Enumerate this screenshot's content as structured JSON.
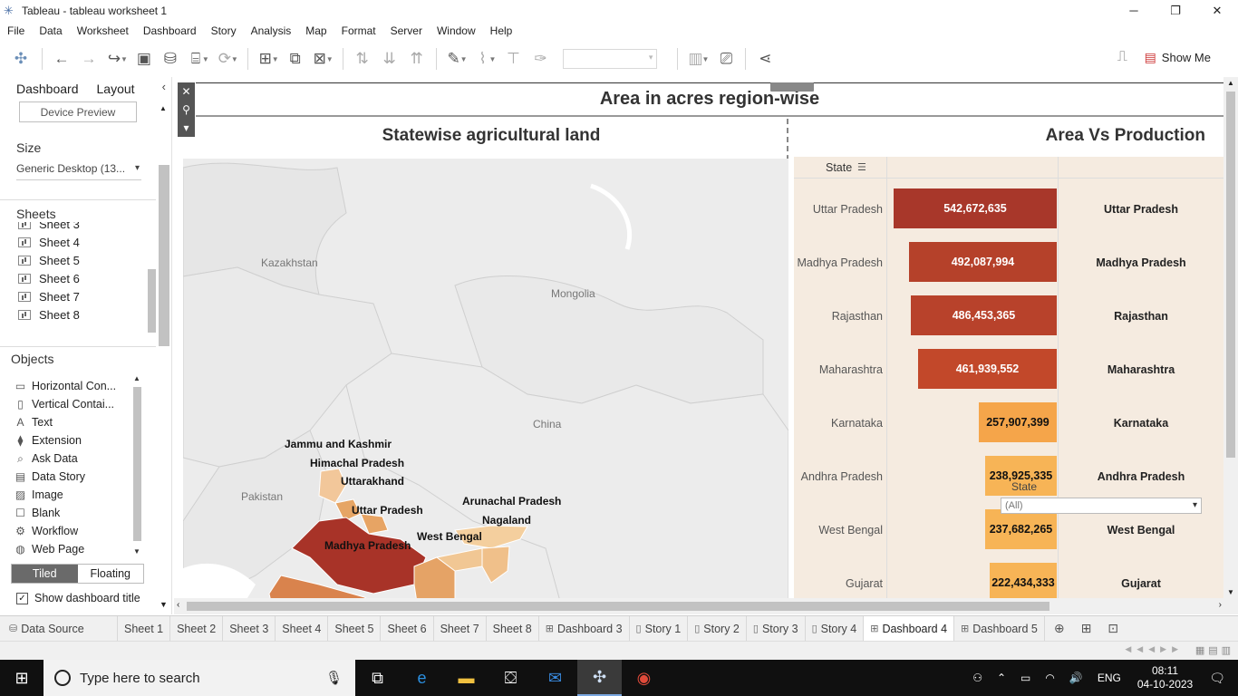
{
  "window": {
    "title": "Tableau - tableau worksheet 1"
  },
  "menu": [
    "File",
    "Data",
    "Worksheet",
    "Dashboard",
    "Story",
    "Analysis",
    "Map",
    "Format",
    "Server",
    "Window",
    "Help"
  ],
  "toolbar": {
    "show_me_label": "Show Me"
  },
  "left_panel": {
    "tabs": [
      "Dashboard",
      "Layout"
    ],
    "device_preview_label": "Device Preview",
    "size_heading": "Size",
    "size_value": "Generic Desktop (13...",
    "sheets_heading": "Sheets",
    "sheets": [
      "Sheet 3",
      "Sheet 4",
      "Sheet 5",
      "Sheet 6",
      "Sheet 7",
      "Sheet 8"
    ],
    "objects_heading": "Objects",
    "objects": [
      {
        "label": "Horizontal Con...",
        "icon": "horizontal-container-icon"
      },
      {
        "label": "Vertical Contai...",
        "icon": "vertical-container-icon"
      },
      {
        "label": "Text",
        "icon": "text-icon"
      },
      {
        "label": "Extension",
        "icon": "extension-icon"
      },
      {
        "label": "Ask Data",
        "icon": "ask-data-icon"
      },
      {
        "label": "Data Story",
        "icon": "data-story-icon"
      },
      {
        "label": "Image",
        "icon": "image-icon"
      },
      {
        "label": "Blank",
        "icon": "blank-icon"
      },
      {
        "label": "Workflow",
        "icon": "workflow-icon"
      },
      {
        "label": "Web Page",
        "icon": "web-page-icon"
      }
    ],
    "tiled_label": "Tiled",
    "floating_label": "Floating",
    "show_title_label": "Show dashboard title"
  },
  "dashboard": {
    "title": "Area in acres region-wise",
    "map": {
      "title": "Statewise agricultural land",
      "countries": [
        "Kazakhstan",
        "Mongolia",
        "China",
        "Pakistan"
      ],
      "states": [
        "Jammu and Kashmir",
        "Himachal Pradesh",
        "Uttarakhand",
        "Uttar Pradesh",
        "Arunachal Pradesh",
        "Nagaland",
        "West Bengal",
        "Madhya Pradesh"
      ]
    },
    "bar": {
      "title": "Area Vs Production",
      "column_header": "State",
      "filter_title": "State",
      "filter_value": "(All)"
    }
  },
  "chart_data": {
    "type": "bar",
    "title": "Area Vs Production",
    "categories": [
      "Uttar Pradesh",
      "Madhya Pradesh",
      "Rajasthan",
      "Maharashtra",
      "Karnataka",
      "Andhra Pradesh",
      "West Bengal",
      "Gujarat"
    ],
    "values": [
      542672635,
      492087994,
      486453365,
      461939552,
      257907399,
      238925335,
      237682265,
      222434333
    ],
    "value_labels": [
      "542,672,635",
      "492,087,994",
      "486,453,365",
      "461,939,552",
      "257,907,399",
      "238,925,335",
      "237,682,265",
      "222,434,333"
    ],
    "colors": [
      "#a8372a",
      "#b5412a",
      "#b8422b",
      "#c2482a",
      "#f5a54a",
      "#f7b456",
      "#f7b456",
      "#f7b456"
    ],
    "xlim": [
      0,
      600000000
    ]
  },
  "sheet_tabs": [
    {
      "label": "Data Source",
      "icon": "data-source-icon"
    },
    {
      "label": "Sheet 1",
      "icon": ""
    },
    {
      "label": "Sheet 2",
      "icon": ""
    },
    {
      "label": "Sheet 3",
      "icon": ""
    },
    {
      "label": "Sheet 4",
      "icon": ""
    },
    {
      "label": "Sheet 5",
      "icon": ""
    },
    {
      "label": "Sheet 6",
      "icon": ""
    },
    {
      "label": "Sheet 7",
      "icon": ""
    },
    {
      "label": "Sheet 8",
      "icon": ""
    },
    {
      "label": "Dashboard 3",
      "icon": "dashboard-icon"
    },
    {
      "label": "Story 1",
      "icon": "story-icon"
    },
    {
      "label": "Story 2",
      "icon": "story-icon"
    },
    {
      "label": "Story 3",
      "icon": "story-icon"
    },
    {
      "label": "Story 4",
      "icon": "story-icon"
    },
    {
      "label": "Dashboard 4",
      "icon": "dashboard-icon",
      "active": true
    },
    {
      "label": "Dashboard 5",
      "icon": "dashboard-icon"
    }
  ],
  "taskbar": {
    "search_placeholder": "Type here to search",
    "language": "ENG",
    "time": "08:11",
    "date": "04-10-2023"
  }
}
